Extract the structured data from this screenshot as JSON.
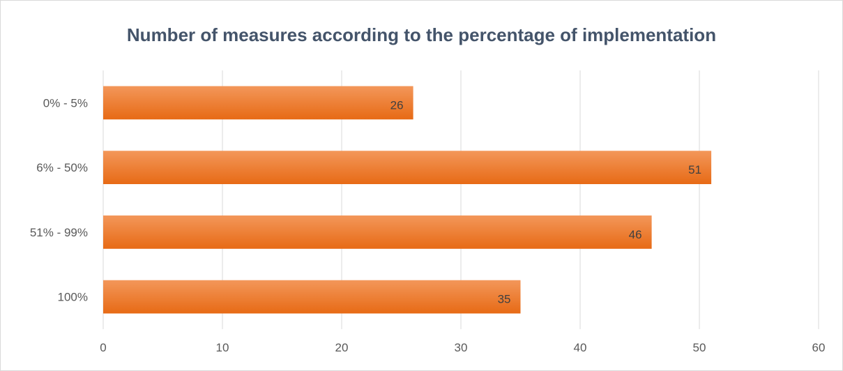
{
  "chart_data": {
    "type": "bar",
    "orientation": "horizontal",
    "title": "Number of measures according to the percentage of implementation",
    "categories": [
      "0% - 5%",
      "6% - 50%",
      "51% - 99%",
      "100%"
    ],
    "values": [
      26,
      51,
      46,
      35
    ],
    "xlim": [
      0,
      60
    ],
    "x_ticks": [
      0,
      10,
      20,
      30,
      40,
      50,
      60
    ],
    "xlabel": "",
    "ylabel": "",
    "grid": "vertical",
    "legend": "none",
    "colors": {
      "bar": "#ed7d31",
      "bar_light": "#f3975a",
      "bar_dark": "#e76a15",
      "grid": "#d9d9d9",
      "title": "#44546a"
    },
    "data_labels": true
  }
}
